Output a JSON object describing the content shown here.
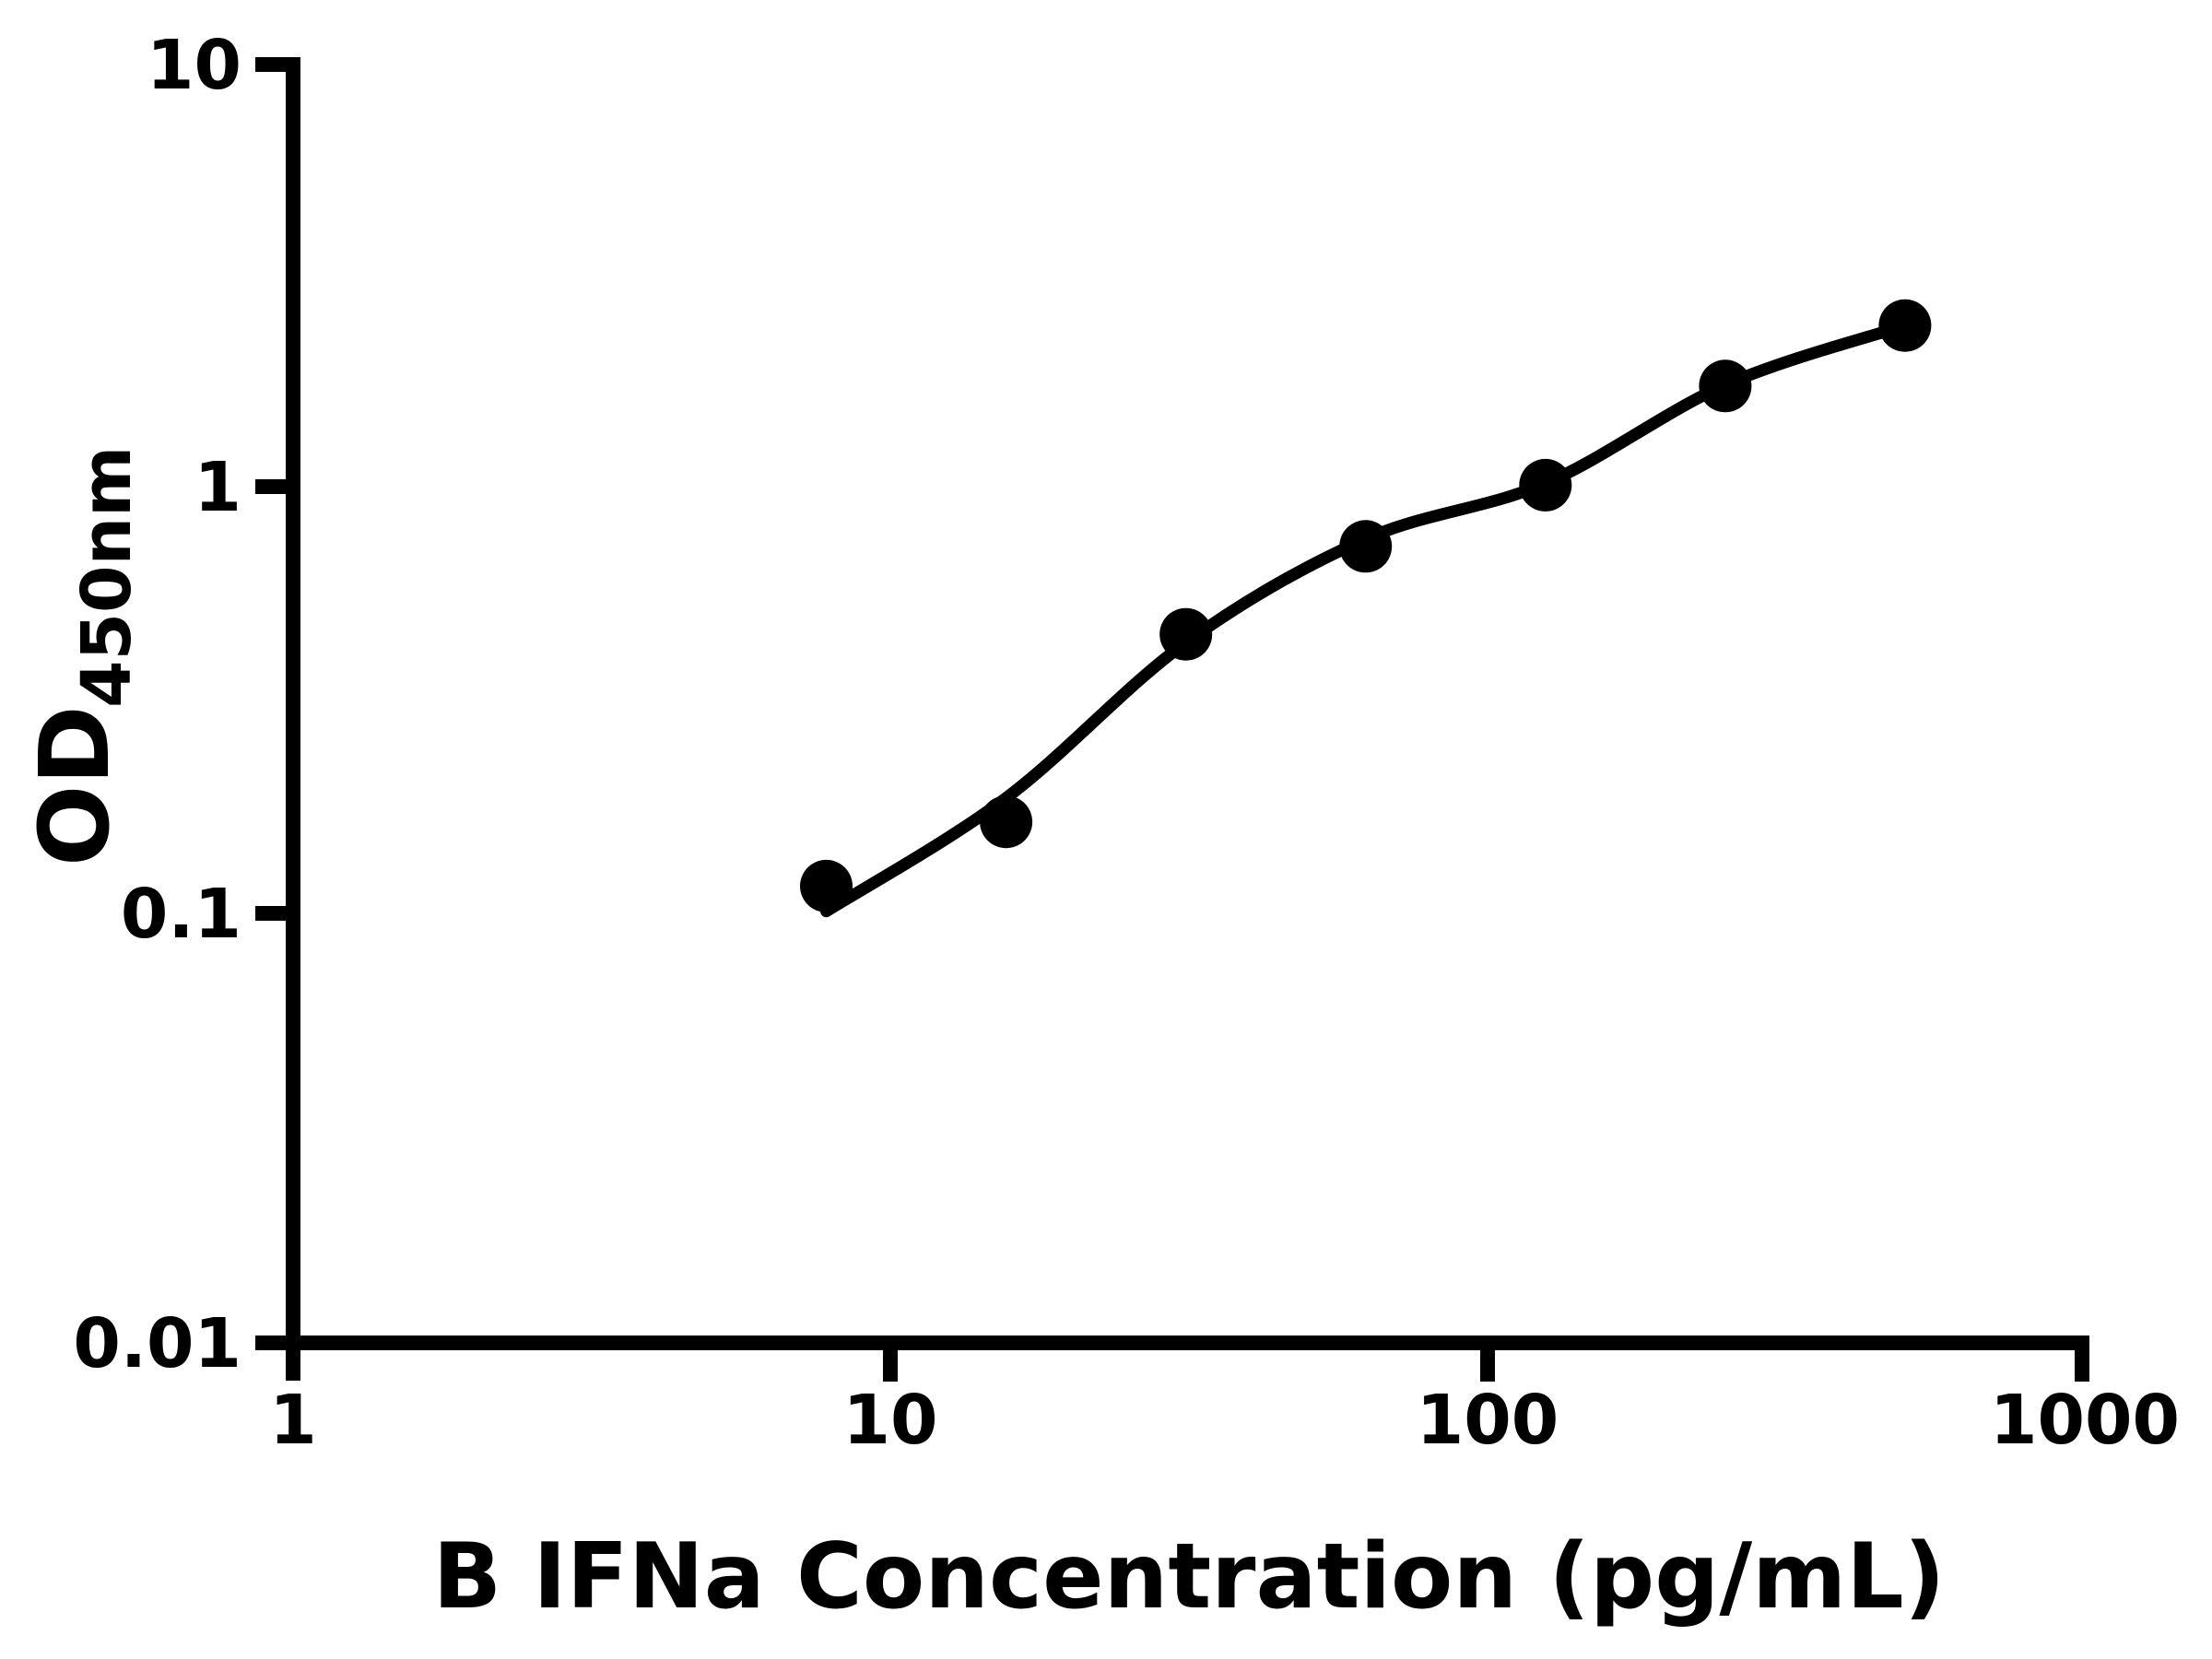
{
  "figure": {
    "background_color": "#ffffff",
    "foreground_color": "#000000"
  },
  "x_axis": {
    "label": "B IFNa Concentration (pg/mL)",
    "scale": "log10",
    "range": [
      1,
      1000
    ],
    "ticks": [
      1,
      10,
      100,
      1000
    ],
    "tick_labels": [
      "1",
      "10",
      "100",
      "1000"
    ]
  },
  "y_axis": {
    "label_main": "OD",
    "label_sub": "450nm",
    "scale": "log10",
    "range": [
      0.01,
      10
    ],
    "ticks": [
      10,
      1,
      0.1,
      0.01
    ],
    "tick_labels": [
      "10",
      "1",
      "0.1",
      "0.01"
    ]
  },
  "chart_data": {
    "type": "scatter",
    "title": "",
    "xlabel": "B IFNa Concentration (pg/mL)",
    "ylabel": "OD450nm",
    "xscale": "log10",
    "yscale": "log10",
    "xlim": [
      1,
      1000
    ],
    "ylim": [
      0.01,
      10
    ],
    "grid": false,
    "legend": "none",
    "marker_color": "#000000",
    "line_color": "#000000",
    "x": [
      7.8125,
      15.625,
      31.25,
      62.5,
      125,
      250,
      500
    ],
    "y": [
      0.118,
      0.167,
      0.46,
      0.74,
      1.03,
      1.76,
      2.44
    ],
    "fit_curve": {
      "x": [
        7.8125,
        15.625,
        31.25,
        62.5,
        125,
        250,
        500
      ],
      "od": [
        0.103,
        0.19,
        0.44,
        0.77,
        1.04,
        1.77,
        2.44
      ]
    }
  }
}
